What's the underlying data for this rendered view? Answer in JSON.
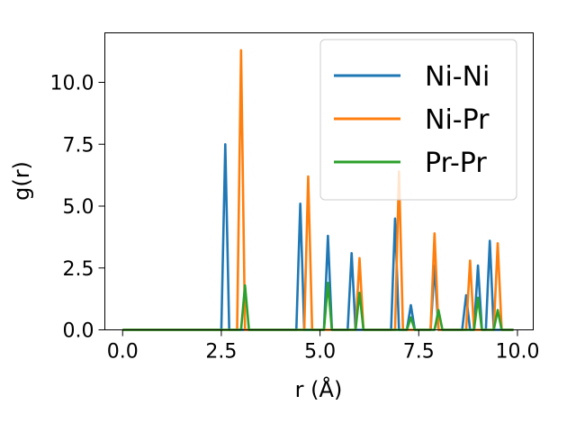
{
  "chart_data": {
    "type": "line",
    "xlabel": "r (Å)",
    "ylabel": "g(r)",
    "xlim": [
      -0.45,
      10.4
    ],
    "ylim": [
      0.0,
      12.0
    ],
    "xticks": [
      0.0,
      2.5,
      5.0,
      7.5,
      10.0
    ],
    "xtick_labels": [
      "0.0",
      "2.5",
      "5.0",
      "7.5",
      "10.0"
    ],
    "yticks": [
      0.0,
      2.5,
      5.0,
      7.5,
      10.0
    ],
    "ytick_labels": [
      "0.0",
      "2.5",
      "5.0",
      "7.5",
      "10.0"
    ],
    "grid": false,
    "legend_position": "top-right",
    "legend_labels": [
      "Ni-Ni",
      "Ni-Pr",
      "Pr-Pr"
    ],
    "series": [
      {
        "name": "Ni-Ni",
        "color": "#1f77b4",
        "x": [
          0.0,
          2.5,
          2.6,
          2.7,
          4.4,
          4.5,
          4.6,
          5.1,
          5.2,
          5.3,
          5.7,
          5.8,
          5.9,
          6.8,
          6.9,
          7.0,
          7.2,
          7.3,
          7.4,
          7.8,
          7.9,
          8.0,
          8.6,
          8.7,
          8.8,
          8.9,
          9.0,
          9.1,
          9.2,
          9.3,
          9.4,
          9.9
        ],
        "y": [
          0.0,
          0.0,
          7.5,
          0.0,
          0.0,
          5.1,
          0.0,
          0.0,
          3.8,
          0.0,
          0.0,
          3.1,
          0.0,
          0.0,
          4.5,
          0.0,
          0.0,
          1.0,
          0.0,
          0.0,
          2.6,
          0.0,
          0.0,
          1.4,
          0.0,
          0.0,
          2.6,
          0.0,
          0.0,
          3.6,
          0.0,
          0.0
        ]
      },
      {
        "name": "Ni-Pr",
        "color": "#ff7f0e",
        "x": [
          0.0,
          2.9,
          3.0,
          3.1,
          4.6,
          4.7,
          4.8,
          5.9,
          6.0,
          6.1,
          6.9,
          7.0,
          7.1,
          7.8,
          7.9,
          8.0,
          8.7,
          8.8,
          8.9,
          9.4,
          9.5,
          9.6,
          9.9
        ],
        "y": [
          0.0,
          0.0,
          11.3,
          0.0,
          0.0,
          6.2,
          0.0,
          0.0,
          2.9,
          0.0,
          0.0,
          6.4,
          0.0,
          0.0,
          3.9,
          0.0,
          0.0,
          2.8,
          0.0,
          0.0,
          3.5,
          0.0,
          0.0
        ]
      },
      {
        "name": "Pr-Pr",
        "color": "#2ca02c",
        "x": [
          0.0,
          3.0,
          3.1,
          3.2,
          5.1,
          5.2,
          5.3,
          5.9,
          6.0,
          6.1,
          7.2,
          7.3,
          7.4,
          7.9,
          8.0,
          8.1,
          8.9,
          9.0,
          9.1,
          9.4,
          9.5,
          9.6,
          9.9
        ],
        "y": [
          0.0,
          0.0,
          1.8,
          0.0,
          0.0,
          1.9,
          0.0,
          0.0,
          1.5,
          0.0,
          0.0,
          0.5,
          0.0,
          0.0,
          0.8,
          0.0,
          0.0,
          1.3,
          0.0,
          0.0,
          0.8,
          0.0,
          0.0
        ]
      }
    ]
  }
}
